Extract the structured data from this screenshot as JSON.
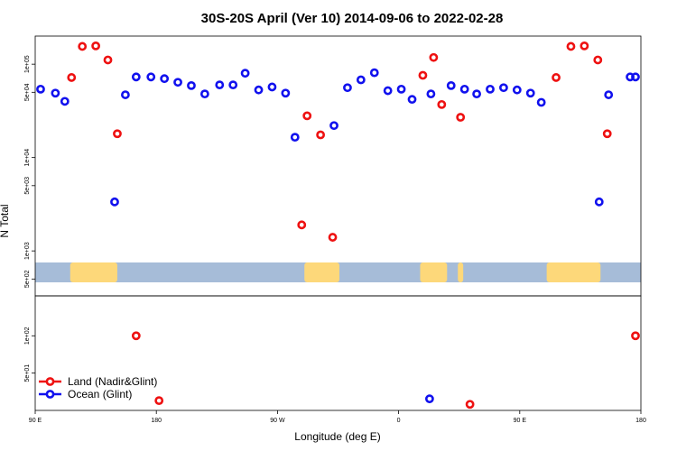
{
  "chart_data": {
    "type": "scatter",
    "title": "30S-20S April (Ver 10)   2014-09-06 to 2022-02-28",
    "xlabel": "Longitude (deg E)",
    "ylabel": "N Total",
    "x_ticks": [
      {
        "value": 90,
        "label": "90 E"
      },
      {
        "value": 180,
        "label": "180"
      },
      {
        "value": 270,
        "label": "90 W"
      },
      {
        "value": 360,
        "label": "0"
      },
      {
        "value": 450,
        "label": "90 E"
      },
      {
        "value": 540,
        "label": "180"
      }
    ],
    "xlim": [
      90,
      540
    ],
    "log_y": true,
    "colors": {
      "land": "#ee1111",
      "ocean": "#1111ee",
      "map_ocean": "#a6bcd8",
      "map_land": "#fdd87a"
    },
    "panels": [
      {
        "name": "upper",
        "ylim": [
          330,
          200000
        ],
        "y_ticks": [
          {
            "value": 500,
            "label": "5e+02"
          },
          {
            "value": 1000,
            "label": "1e+03"
          },
          {
            "value": 5000,
            "label": "5e+03"
          },
          {
            "value": 10000,
            "label": "1e+04"
          },
          {
            "value": 50000,
            "label": "5e+04"
          },
          {
            "value": 100000,
            "label": "1e+05"
          }
        ],
        "series": [
          {
            "name": "Land (Nadir&Glint)",
            "color": "#ee1111",
            "points": [
              [
                117,
                72000
              ],
              [
                125,
                155000
              ],
              [
                135,
                157000
              ],
              [
                144,
                111000
              ],
              [
                151,
                18000
              ],
              [
                288,
                1900
              ],
              [
                292,
                28000
              ],
              [
                302,
                17500
              ],
              [
                311,
                1400
              ],
              [
                378,
                76000
              ],
              [
                386,
                118000
              ],
              [
                392,
                37000
              ],
              [
                406,
                27000
              ],
              [
                477,
                72000
              ],
              [
                488,
                155000
              ],
              [
                498,
                157000
              ],
              [
                508,
                111000
              ],
              [
                515,
                18000
              ]
            ]
          },
          {
            "name": "Ocean (Glint)",
            "color": "#1111ee",
            "points": [
              [
                94,
                54000
              ],
              [
                105,
                49000
              ],
              [
                112,
                40000
              ],
              [
                149,
                3350
              ],
              [
                157,
                47000
              ],
              [
                165,
                73000
              ],
              [
                176,
                73000
              ],
              [
                186,
                70000
              ],
              [
                196,
                64000
              ],
              [
                206,
                59000
              ],
              [
                216,
                48000
              ],
              [
                227,
                60000
              ],
              [
                237,
                60000
              ],
              [
                246,
                80000
              ],
              [
                256,
                53000
              ],
              [
                266,
                57000
              ],
              [
                276,
                49000
              ],
              [
                283,
                16500
              ],
              [
                312,
                22000
              ],
              [
                322,
                56000
              ],
              [
                332,
                68000
              ],
              [
                342,
                81000
              ],
              [
                352,
                52000
              ],
              [
                362,
                54000
              ],
              [
                370,
                42000
              ],
              [
                384,
                48000
              ],
              [
                399,
                59000
              ],
              [
                409,
                54000
              ],
              [
                418,
                48000
              ],
              [
                428,
                54000
              ],
              [
                438,
                56000
              ],
              [
                448,
                53000
              ],
              [
                458,
                49000
              ],
              [
                466,
                39000
              ],
              [
                509,
                3350
              ],
              [
                516,
                47000
              ],
              [
                532,
                73000
              ],
              [
                545,
                73000
              ]
            ]
          }
        ]
      },
      {
        "name": "lower",
        "ylim": [
          25,
          210
        ],
        "y_ticks": [
          {
            "value": 50,
            "label": "5e+01"
          },
          {
            "value": 100,
            "label": "1e+02"
          }
        ],
        "series": [
          {
            "name": "Land (Nadir&Glint)",
            "color": "#ee1111",
            "points": [
              [
                165,
                100
              ],
              [
                182,
                30
              ],
              [
                413,
                28
              ],
              [
                536,
                100
              ]
            ]
          },
          {
            "name": "Ocean (Glint)",
            "color": "#1111ee",
            "points": [
              [
                383,
                31
              ]
            ]
          }
        ]
      }
    ],
    "land_map_spans": [
      [
        116,
        151
      ],
      [
        290,
        316
      ],
      [
        376,
        396
      ],
      [
        404,
        408
      ],
      [
        470,
        510
      ]
    ],
    "legend": {
      "placement": "bottom-left",
      "entries": [
        {
          "label": "Land (Nadir&Glint)",
          "color": "#ee1111"
        },
        {
          "label": "Ocean (Glint)",
          "color": "#1111ee"
        }
      ]
    }
  }
}
